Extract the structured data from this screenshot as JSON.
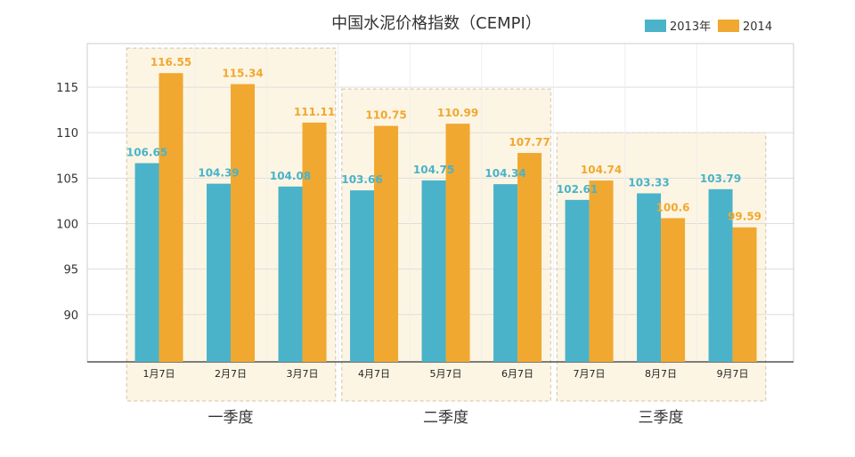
{
  "chart_data": {
    "type": "bar",
    "title": "中国水泥价格指数（CEMPI）",
    "categories": [
      "1月7日",
      "2月7日",
      "3月7日",
      "4月7日",
      "5月7日",
      "6月7日",
      "7月7日",
      "8月7日",
      "9月7日"
    ],
    "series": [
      {
        "name": "2013年",
        "color": "#4ab3c9",
        "values": [
          106.65,
          104.39,
          104.08,
          103.66,
          104.75,
          104.34,
          102.61,
          103.33,
          103.79
        ],
        "value_labels": [
          "106.65",
          "104.39",
          "104.08",
          "103.66",
          "104.75",
          "104.34",
          "102.61",
          "103.33",
          "103.79"
        ]
      },
      {
        "name": "2014",
        "color": "#f0a830",
        "values": [
          116.55,
          115.34,
          111.11,
          110.75,
          110.99,
          107.77,
          104.74,
          100.6,
          99.59
        ],
        "value_labels": [
          "116.55",
          "115.34",
          "111.11",
          "110.75",
          "110.99",
          "107.77",
          "104.74",
          "100.6",
          "99.59"
        ]
      }
    ],
    "ylim": [
      84.8,
      119.8
    ],
    "yticks": [
      "90",
      "95",
      "100",
      "105",
      "110",
      "115"
    ],
    "xlabel": "",
    "ylabel": "",
    "grid": true,
    "legend": "top-right",
    "groups": [
      {
        "label": "一季度",
        "categories": [
          0,
          1,
          2
        ],
        "top_value": 119.3
      },
      {
        "label": "二季度",
        "categories": [
          3,
          4,
          5
        ],
        "top_value": 114.8
      },
      {
        "label": "三季度",
        "categories": [
          6,
          7,
          8
        ],
        "top_value": 110.0
      }
    ]
  }
}
